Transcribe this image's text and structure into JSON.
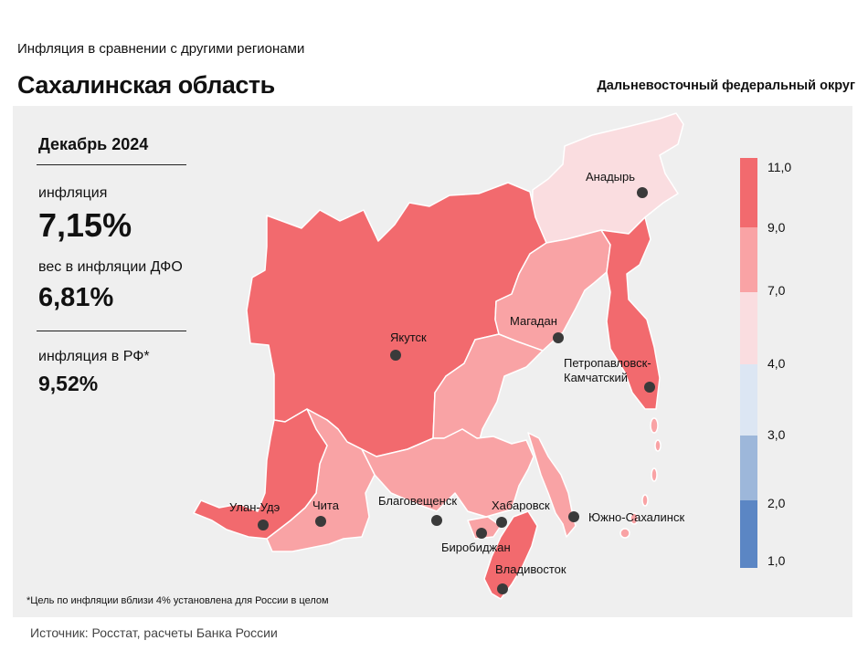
{
  "header": {
    "top_label": "Инфляция  в сравнении  с другими  регионами",
    "title": "Сахалинская область",
    "district": "Дальневосточный федеральный округ"
  },
  "stats": {
    "period": "Декабрь 2024",
    "inflation_label": "инфляция",
    "inflation_value": "7,15%",
    "weight_label": "вес в инфляции  ДФО",
    "weight_value": "6,81%",
    "rf_label": "инфляция  в РФ*",
    "rf_value": "9,52%"
  },
  "legend": {
    "ticks": [
      "11,0",
      "9,0",
      "7,0",
      "4,0",
      "3,0",
      "2,0",
      "1,0"
    ],
    "colors": [
      "#f26a6e",
      "#f9a3a5",
      "#fadde0",
      "#dce6f3",
      "#9db7da",
      "#5b86c4"
    ]
  },
  "map": {
    "colors": {
      "high": "#f26a6e",
      "mid": "#f9a3a5",
      "low": "#fadde0"
    },
    "cities": [
      {
        "name": "Анадырь"
      },
      {
        "name": "Магадан"
      },
      {
        "name": "Якутск"
      },
      {
        "name": "Петропавловск-"
      },
      {
        "name": "Камчатский"
      },
      {
        "name": "Улан-Удэ"
      },
      {
        "name": "Чита"
      },
      {
        "name": "Благовещенск"
      },
      {
        "name": "Хабаровск"
      },
      {
        "name": "Южно-Сахалинск"
      },
      {
        "name": "Биробиджан"
      },
      {
        "name": "Владивосток"
      }
    ]
  },
  "footnote": "*Цель по инфляции вблизи 4% установлена для России в целом",
  "source": "Источник: Росстат, расчеты  Банка  России"
}
